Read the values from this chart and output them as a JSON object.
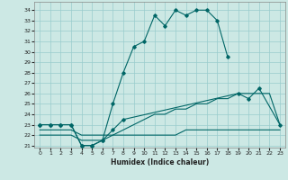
{
  "xlabel": "Humidex (Indice chaleur)",
  "ylabel": "",
  "background_color": "#cce8e4",
  "grid_color": "#99cccc",
  "line_color": "#006666",
  "xlim": [
    -0.5,
    23.5
  ],
  "ylim": [
    20.8,
    34.8
  ],
  "xticks": [
    0,
    1,
    2,
    3,
    4,
    5,
    6,
    7,
    8,
    9,
    10,
    11,
    12,
    13,
    14,
    15,
    16,
    17,
    18,
    19,
    20,
    21,
    22,
    23
  ],
  "yticks": [
    21,
    22,
    23,
    24,
    25,
    26,
    27,
    28,
    29,
    30,
    31,
    32,
    33,
    34
  ],
  "lines": [
    {
      "x": [
        0,
        1,
        2,
        3,
        4,
        5,
        6,
        7,
        8,
        9,
        10,
        11,
        12,
        13,
        14,
        15,
        16,
        17,
        18
      ],
      "y": [
        23,
        23,
        23,
        23,
        21,
        21,
        21.5,
        25,
        28,
        30.5,
        31,
        33.5,
        32.5,
        34,
        33.5,
        34,
        34,
        33,
        29.5
      ],
      "marker": true
    },
    {
      "x": [
        0,
        1,
        2,
        3,
        4,
        5,
        6,
        7,
        8,
        19,
        20,
        21,
        23
      ],
      "y": [
        23,
        23,
        23,
        23,
        21,
        21,
        21.5,
        22.5,
        23.5,
        26,
        25.5,
        26.5,
        23
      ],
      "marker": true
    },
    {
      "x": [
        0,
        1,
        2,
        3,
        4,
        5,
        6,
        7,
        8,
        9,
        10,
        11,
        12,
        13,
        14,
        15,
        16,
        17,
        18,
        19,
        20,
        21,
        22,
        23
      ],
      "y": [
        22.5,
        22.5,
        22.5,
        22.5,
        22,
        22,
        22,
        22,
        22.5,
        23,
        23.5,
        24,
        24,
        24.5,
        24.5,
        25,
        25,
        25.5,
        25.5,
        26,
        26,
        26,
        26,
        23
      ],
      "marker": false
    },
    {
      "x": [
        0,
        1,
        2,
        3,
        4,
        5,
        6,
        7,
        8,
        9,
        10,
        11,
        12,
        13,
        14,
        15,
        16,
        17,
        18,
        19,
        20,
        21,
        22,
        23
      ],
      "y": [
        22,
        22,
        22,
        22,
        21.5,
        21.5,
        21.5,
        22,
        22,
        22,
        22,
        22,
        22,
        22,
        22.5,
        22.5,
        22.5,
        22.5,
        22.5,
        22.5,
        22.5,
        22.5,
        22.5,
        22.5
      ],
      "marker": false
    }
  ]
}
